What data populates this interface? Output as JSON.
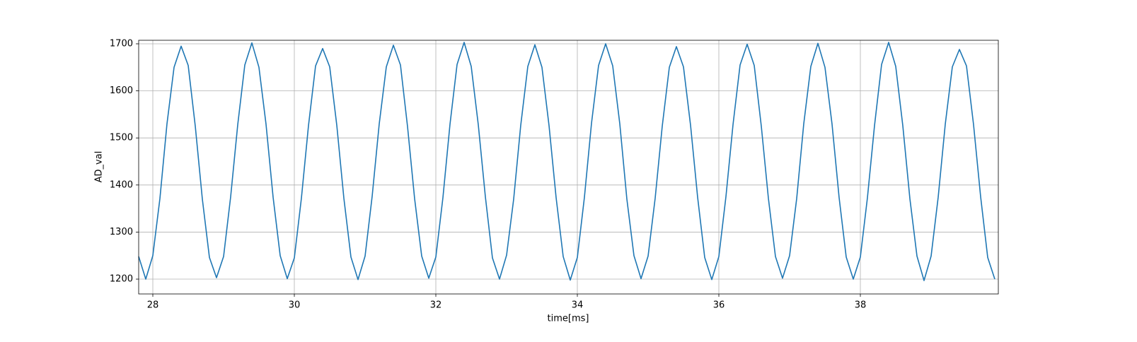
{
  "chart_data": {
    "type": "line",
    "xlabel": "time[ms]",
    "ylabel": "AD_val",
    "x": [
      27.8,
      27.9,
      28.0,
      28.1,
      28.2,
      28.3,
      28.4,
      28.5,
      28.6,
      28.7,
      28.8,
      28.9,
      29.0,
      29.1,
      29.2,
      29.3,
      29.4,
      29.5,
      29.6,
      29.7,
      29.8,
      29.9,
      30.0,
      30.1,
      30.2,
      30.3,
      30.4,
      30.5,
      30.6,
      30.7,
      30.8,
      30.9,
      31.0,
      31.1,
      31.2,
      31.3,
      31.4,
      31.5,
      31.6,
      31.7,
      31.8,
      31.9,
      32.0,
      32.1,
      32.2,
      32.3,
      32.4,
      32.5,
      32.6,
      32.7,
      32.8,
      32.9,
      33.0,
      33.1,
      33.2,
      33.3,
      33.4,
      33.5,
      33.6,
      33.7,
      33.8,
      33.9,
      34.0,
      34.1,
      34.2,
      34.3,
      34.4,
      34.5,
      34.6,
      34.7,
      34.8,
      34.9,
      35.0,
      35.1,
      35.2,
      35.3,
      35.4,
      35.5,
      35.6,
      35.7,
      35.8,
      35.9,
      36.0,
      36.1,
      36.2,
      36.3,
      36.4,
      36.5,
      36.6,
      36.7,
      36.8,
      36.9,
      37.0,
      37.1,
      37.2,
      37.3,
      37.4,
      37.5,
      37.6,
      37.7,
      37.8,
      37.9,
      38.0,
      38.1,
      38.2,
      38.3,
      38.4,
      38.5,
      38.6,
      38.7,
      38.8,
      38.9,
      39.0,
      39.1,
      39.2,
      39.3,
      39.4,
      39.5,
      39.6,
      39.7,
      39.8,
      39.9
    ],
    "series": [
      {
        "name": "AD_val",
        "color": "#1f77b4",
        "values": [
          1248,
          1200,
          1250,
          1371,
          1530,
          1650,
          1695,
          1654,
          1525,
          1370,
          1246,
          1203,
          1248,
          1375,
          1528,
          1655,
          1702,
          1650,
          1529,
          1374,
          1250,
          1201,
          1245,
          1372,
          1526,
          1653,
          1690,
          1651,
          1527,
          1372,
          1247,
          1199,
          1249,
          1376,
          1530,
          1651,
          1697,
          1655,
          1524,
          1371,
          1249,
          1202,
          1247,
          1373,
          1529,
          1656,
          1703,
          1652,
          1528,
          1375,
          1245,
          1200,
          1251,
          1370,
          1527,
          1652,
          1698,
          1650,
          1526,
          1373,
          1248,
          1198,
          1246,
          1374,
          1531,
          1654,
          1700,
          1653,
          1530,
          1370,
          1250,
          1201,
          1249,
          1372,
          1525,
          1650,
          1694,
          1651,
          1527,
          1374,
          1246,
          1199,
          1248,
          1375,
          1528,
          1655,
          1699,
          1654,
          1525,
          1372,
          1248,
          1202,
          1250,
          1371,
          1530,
          1652,
          1701,
          1650,
          1529,
          1373,
          1247,
          1200,
          1247,
          1373,
          1526,
          1656,
          1703,
          1652,
          1526,
          1371,
          1249,
          1197,
          1249,
          1374,
          1529,
          1651,
          1688,
          1653,
          1528,
          1375,
          1246,
          1200
        ]
      }
    ],
    "xlim": [
      27.8,
      39.95
    ],
    "ylim": [
      1168.5,
      1707.5
    ],
    "xticks": [
      28,
      30,
      32,
      34,
      36,
      38
    ],
    "yticks": [
      1200,
      1300,
      1400,
      1500,
      1600,
      1700
    ],
    "grid": true
  }
}
